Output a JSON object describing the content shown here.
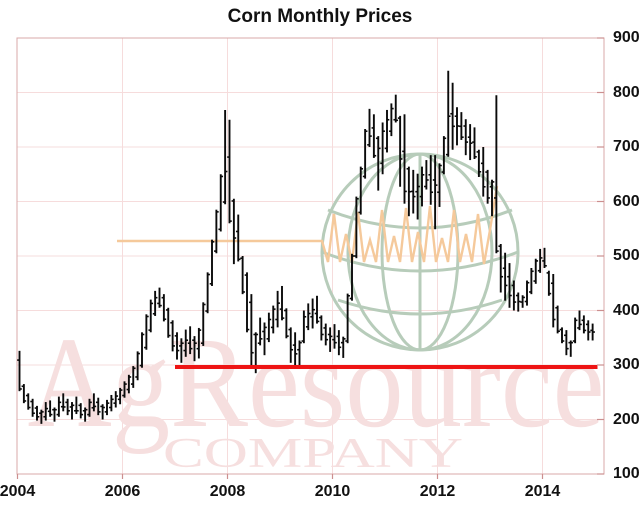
{
  "title": "Corn Monthly Prices",
  "watermark": {
    "line1": "AgResource",
    "line2": "COMPANY",
    "text_color": "#f6dfdf",
    "globe_color": "#b7ccba",
    "pulse_color": "#f5c99b"
  },
  "colors": {
    "bar": "#0a0a0a",
    "support_line": "#ee1414",
    "grid": "#f6dcdc",
    "frame": "#d9a8a8",
    "tick": "#cc8f8f",
    "label": "#111111",
    "background": "#ffffff"
  },
  "axes": {
    "x_tick_labels": [
      "2004",
      "2006",
      "2008",
      "2010",
      "2012",
      "2014"
    ],
    "y_tick_labels": [
      100,
      200,
      300,
      400,
      500,
      600,
      700,
      800,
      900
    ],
    "y_side": "right"
  },
  "chart_data": {
    "type": "bar",
    "style": "monthly high-low price range bars with open/close ticks",
    "title": "Corn Monthly Prices",
    "x_start": "2004-01",
    "x_end": "2014-12",
    "x_unit": "month",
    "ylim": [
      100,
      900
    ],
    "grid": true,
    "series": [
      {
        "name": "monthly high",
        "values": [
          326,
          265,
          248,
          238,
          225,
          218,
          232,
          235,
          222,
          242,
          248,
          238,
          232,
          242,
          230,
          222,
          238,
          248,
          240,
          228,
          236,
          245,
          252,
          258,
          270,
          282,
          298,
          325,
          360,
          393,
          420,
          436,
          442,
          430,
          405,
          382,
          360,
          349,
          365,
          371,
          353,
          368,
          415,
          470,
          530,
          585,
          650,
          768,
          750,
          605,
          576,
          500,
          470,
          430,
          360,
          387,
          378,
          396,
          409,
          436,
          445,
          404,
          369,
          360,
          345,
          400,
          413,
          422,
          427,
          391,
          376,
          369,
          375,
          364,
          352,
          431,
          504,
          609,
          664,
          733,
          770,
          760,
          720,
          745,
          768,
          780,
          796,
          757,
          760,
          664,
          658,
          651,
          664,
          676,
          685,
          685,
          670,
          720,
          840,
          818,
          773,
          764,
          751,
          742,
          736,
          695,
          700,
          658,
          640,
          795,
          522,
          506,
          487,
          455,
          433,
          428,
          455,
          478,
          495,
          513,
          515,
          473,
          467,
          409,
          369,
          364,
          345,
          387,
          400,
          391,
          382,
          376
        ]
      },
      {
        "name": "monthly low",
        "values": [
          252,
          230,
          218,
          205,
          198,
          192,
          198,
          205,
          196,
          205,
          215,
          208,
          200,
          210,
          202,
          196,
          205,
          215,
          208,
          200,
          208,
          215,
          222,
          228,
          240,
          248,
          258,
          272,
          295,
          328,
          360,
          390,
          405,
          380,
          350,
          325,
          310,
          304,
          315,
          320,
          307,
          312,
          335,
          395,
          445,
          505,
          545,
          595,
          560,
          485,
          490,
          430,
          360,
          300,
          285,
          336,
          318,
          342,
          358,
          369,
          382,
          349,
          304,
          296,
          296,
          340,
          364,
          367,
          376,
          345,
          336,
          324,
          330,
          318,
          313,
          340,
          418,
          496,
          576,
          642,
          700,
          680,
          620,
          650,
          690,
          720,
          745,
          627,
          596,
          573,
          578,
          567,
          591,
          622,
          594,
          549,
          590,
          650,
          682,
          695,
          703,
          713,
          685,
          676,
          678,
          645,
          609,
          596,
          573,
          505,
          433,
          418,
          405,
          400,
          398,
          405,
          409,
          430,
          449,
          469,
          478,
          427,
          369,
          358,
          340,
          318,
          315,
          340,
          364,
          358,
          345,
          345
        ]
      }
    ],
    "support_line": {
      "value": 300,
      "from": "2007-01",
      "to": "2014-12",
      "color": "#ee1414"
    }
  }
}
